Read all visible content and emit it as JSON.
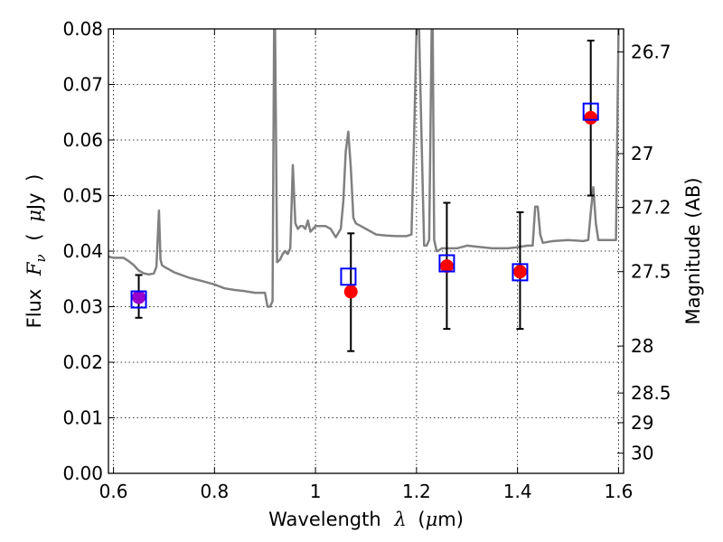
{
  "chart_data": {
    "type": "scatter",
    "title": "",
    "xlabel": "Wavelength  λ (μm)",
    "ylabel": "Flux  F_ν  ( μJy )",
    "ylabel_parts": {
      "prefix": "Flux",
      "symbol": "F",
      "subscript": "ν",
      "unit_open": "(",
      "unit_mu": "μ",
      "unit": "Jy",
      "unit_close": ")"
    },
    "xlabel_parts": {
      "prefix": "Wavelength",
      "symbol": "λ",
      "unit_open": "(",
      "unit_mu": "μ",
      "unit": "m)"
    },
    "y2label": "Magnitude (AB)",
    "xlim": [
      0.59,
      1.61
    ],
    "ylim": [
      0.0,
      0.08
    ],
    "grid": true,
    "x_ticks": [
      {
        "v": 0.6,
        "label": "0.6"
      },
      {
        "v": 0.8,
        "label": "0.8"
      },
      {
        "v": 1.0,
        "label": "1"
      },
      {
        "v": 1.2,
        "label": "1.2"
      },
      {
        "v": 1.4,
        "label": "1.4"
      },
      {
        "v": 1.6,
        "label": "1.6"
      }
    ],
    "y_ticks": [
      {
        "v": 0.0,
        "label": "0.00"
      },
      {
        "v": 0.01,
        "label": "0.01"
      },
      {
        "v": 0.02,
        "label": "0.02"
      },
      {
        "v": 0.03,
        "label": "0.03"
      },
      {
        "v": 0.04,
        "label": "0.04"
      },
      {
        "v": 0.05,
        "label": "0.05"
      },
      {
        "v": 0.06,
        "label": "0.06"
      },
      {
        "v": 0.07,
        "label": "0.07"
      },
      {
        "v": 0.08,
        "label": "0.08"
      }
    ],
    "y2_ticks": [
      {
        "mag": 26.7,
        "label": "26.7"
      },
      {
        "mag": 27.0,
        "label": "27"
      },
      {
        "mag": 27.2,
        "label": "27.2"
      },
      {
        "mag": 27.5,
        "label": "27.5"
      },
      {
        "mag": 28.0,
        "label": "28"
      },
      {
        "mag": 28.5,
        "label": "28.5"
      },
      {
        "mag": 29.0,
        "label": "29"
      },
      {
        "mag": 30.0,
        "label": "30"
      }
    ],
    "model_spectrum": {
      "color": "#808080",
      "x": [
        0.59,
        0.6,
        0.62,
        0.63,
        0.64,
        0.645,
        0.65,
        0.66,
        0.67,
        0.68,
        0.685,
        0.69,
        0.693,
        0.696,
        0.7,
        0.72,
        0.75,
        0.78,
        0.8,
        0.82,
        0.84,
        0.86,
        0.88,
        0.9,
        0.905,
        0.91,
        0.915,
        0.918,
        0.92,
        0.924,
        0.93,
        0.935,
        0.94,
        0.945,
        0.95,
        0.955,
        0.96,
        0.965,
        0.97,
        0.975,
        0.98,
        0.985,
        0.99,
        1.0,
        1.01,
        1.02,
        1.03,
        1.04,
        1.05,
        1.055,
        1.06,
        1.065,
        1.07,
        1.075,
        1.08,
        1.09,
        1.1,
        1.12,
        1.14,
        1.16,
        1.18,
        1.19,
        1.195,
        1.2,
        1.205,
        1.21,
        1.215,
        1.22,
        1.225,
        1.23,
        1.232,
        1.235,
        1.24,
        1.242,
        1.25,
        1.26,
        1.27,
        1.28,
        1.3,
        1.32,
        1.35,
        1.38,
        1.4,
        1.42,
        1.43,
        1.435,
        1.44,
        1.445,
        1.45,
        1.47,
        1.5,
        1.53,
        1.54,
        1.545,
        1.55,
        1.555,
        1.56,
        1.57,
        1.58,
        1.595,
        1.6
      ],
      "y": [
        0.039,
        0.0388,
        0.0388,
        0.0382,
        0.0375,
        0.037,
        0.0365,
        0.036,
        0.0358,
        0.036,
        0.0372,
        0.0473,
        0.0385,
        0.0375,
        0.0372,
        0.0362,
        0.0352,
        0.0345,
        0.034,
        0.0333,
        0.033,
        0.0328,
        0.0325,
        0.0325,
        0.03,
        0.03,
        0.031,
        0.08,
        0.08,
        0.038,
        0.0385,
        0.0395,
        0.04,
        0.0395,
        0.0405,
        0.0555,
        0.045,
        0.044,
        0.0445,
        0.0445,
        0.044,
        0.0455,
        0.0435,
        0.0445,
        0.0445,
        0.0445,
        0.044,
        0.0425,
        0.044,
        0.049,
        0.058,
        0.0615,
        0.055,
        0.046,
        0.045,
        0.0445,
        0.044,
        0.043,
        0.0428,
        0.0427,
        0.0427,
        0.043,
        0.06,
        0.08,
        0.08,
        0.06,
        0.041,
        0.041,
        0.042,
        0.08,
        0.08,
        0.042,
        0.04,
        0.04,
        0.0405,
        0.0405,
        0.0405,
        0.0405,
        0.041,
        0.0408,
        0.0405,
        0.0405,
        0.0407,
        0.041,
        0.041,
        0.048,
        0.048,
        0.043,
        0.0415,
        0.0418,
        0.042,
        0.0418,
        0.042,
        0.047,
        0.0515,
        0.045,
        0.042,
        0.042,
        0.042,
        0.042,
        0.08
      ]
    },
    "series": [
      {
        "marker": "square",
        "color": "#0000ff",
        "x": [
          0.65,
          1.065,
          1.26,
          1.405,
          1.545
        ],
        "y": [
          0.0313,
          0.0354,
          0.0378,
          0.0362,
          0.0651
        ]
      },
      {
        "marker": "circle",
        "color": "#ff0000",
        "x": [
          0.65,
          1.07,
          1.26,
          1.405,
          1.545
        ],
        "y": [
          0.0317,
          0.0327,
          0.0373,
          0.0363,
          0.064
        ],
        "yerr_low": [
          0.028,
          0.022,
          0.026,
          0.026,
          0.05
        ],
        "yerr_high": [
          0.0357,
          0.0432,
          0.0487,
          0.047,
          0.0779
        ]
      }
    ],
    "overlap_color": "#9900cc"
  }
}
